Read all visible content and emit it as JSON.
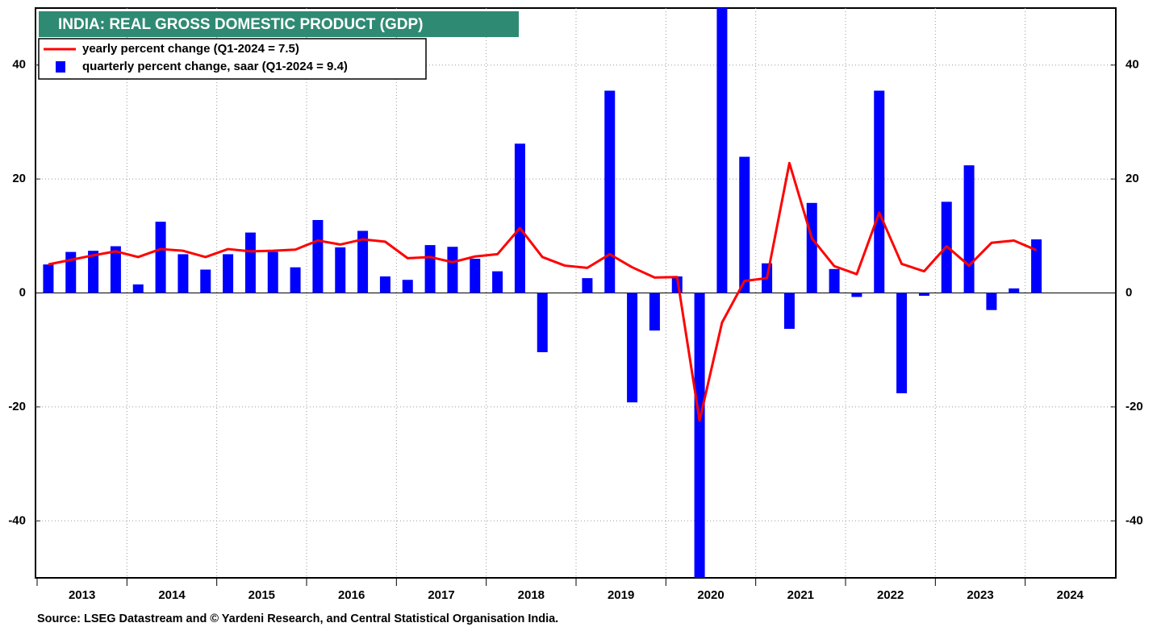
{
  "chart_data": {
    "type": "bar",
    "title": "INDIA: REAL GROSS DOMESTIC PRODUCT (GDP)",
    "source": "Source: LSEG Datastream and © Yardeni Research, and  Central Statistical Organisation India.",
    "x": [
      2013,
      2013.25,
      2013.5,
      2013.75,
      2014,
      2014.25,
      2014.5,
      2014.75,
      2015,
      2015.25,
      2015.5,
      2015.75,
      2016,
      2016.25,
      2016.5,
      2016.75,
      2017,
      2017.25,
      2017.5,
      2017.75,
      2018,
      2018.25,
      2018.5,
      2018.75,
      2019,
      2019.25,
      2019.5,
      2019.75,
      2020,
      2020.25,
      2020.5,
      2020.75,
      2021,
      2021.25,
      2021.5,
      2021.75,
      2022,
      2022.25,
      2022.5,
      2022.75,
      2023,
      2023.25,
      2023.5,
      2023.75,
      2024
    ],
    "series": [
      {
        "name": "yearly percent change (Q1-2024 = 7.5)",
        "type": "line",
        "color": "#ff0000",
        "values": [
          5.0,
          5.8,
          6.6,
          7.3,
          6.3,
          7.7,
          7.4,
          6.3,
          7.7,
          7.3,
          7.4,
          7.6,
          9.2,
          8.5,
          9.4,
          9.0,
          6.1,
          6.3,
          5.4,
          6.4,
          6.8,
          11.4,
          6.3,
          4.8,
          4.4,
          6.8,
          4.5,
          2.7,
          2.8,
          -22.4,
          -5.2,
          2.1,
          2.6,
          22.8,
          9.6,
          4.7,
          3.3,
          14.1,
          5.1,
          3.8,
          8.2,
          4.8,
          8.8,
          9.2,
          7.5
        ]
      },
      {
        "name": "quarterly percent change, saar (Q1-2024 = 9.4)",
        "type": "bar",
        "color": "#0000ff",
        "values": [
          5.0,
          7.2,
          7.4,
          8.2,
          1.5,
          12.5,
          6.8,
          4.1,
          6.8,
          10.6,
          7.2,
          4.5,
          12.8,
          8.0,
          10.9,
          2.9,
          2.3,
          8.4,
          8.1,
          6.0,
          3.8,
          26.2,
          -10.4,
          0,
          2.6,
          35.5,
          -19.2,
          -6.6,
          2.9,
          -60,
          60,
          23.9,
          5.2,
          -6.3,
          15.8,
          4.2,
          -0.7,
          35.5,
          -17.6,
          -0.5,
          16.0,
          22.4,
          -3.0,
          0.8,
          9.4
        ]
      }
    ],
    "xlim": [
      2013,
      2025
    ],
    "xticks": [
      2013,
      2014,
      2015,
      2016,
      2017,
      2018,
      2019,
      2020,
      2021,
      2022,
      2023,
      2024
    ],
    "ylim": [
      -50,
      50
    ],
    "yticks": [
      -40,
      -20,
      0,
      20,
      40
    ],
    "grid": true,
    "legend": "upper left"
  }
}
